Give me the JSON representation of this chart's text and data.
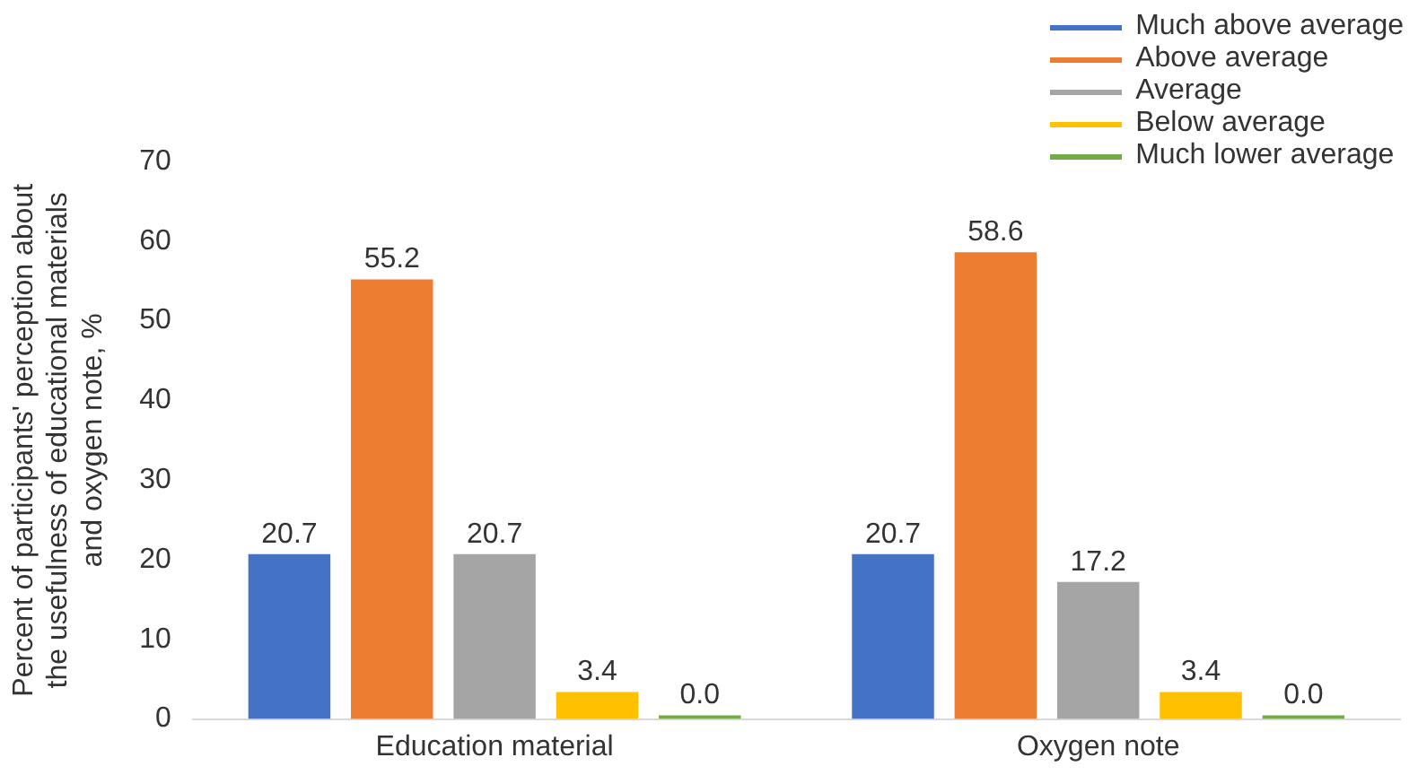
{
  "chart_data": {
    "type": "bar",
    "ylabel": "Percent of participants' perception about the usefulness of educational materials and oxygen note, %",
    "categories": [
      "Education material",
      "Oxygen note"
    ],
    "series": [
      {
        "name": "Much above average",
        "color": "#4472c4",
        "values": [
          20.7,
          20.7
        ],
        "value_labels": [
          "20.7",
          "20.7"
        ]
      },
      {
        "name": "Above average",
        "color": "#ed7d31",
        "values": [
          55.2,
          58.6
        ],
        "value_labels": [
          "55.2",
          "58.6"
        ]
      },
      {
        "name": "Average",
        "color": "#a5a5a5",
        "values": [
          20.7,
          17.2
        ],
        "value_labels": [
          "20.7",
          "17.2"
        ]
      },
      {
        "name": "Below average",
        "color": "#ffc000",
        "values": [
          3.4,
          3.4
        ],
        "value_labels": [
          "3.4",
          "3.4"
        ]
      },
      {
        "name": "Much lower average",
        "color": "#70ad47",
        "values": [
          0,
          0
        ],
        "value_labels": [
          "0.0",
          "0.0"
        ]
      }
    ],
    "ylim": [
      0,
      70
    ],
    "yticks": [
      0,
      10,
      20,
      30,
      40,
      50,
      60,
      70
    ],
    "grid": false,
    "legend": "top right"
  }
}
